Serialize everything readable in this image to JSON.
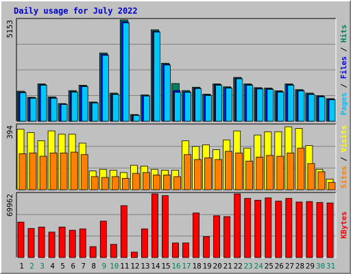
{
  "chart_data": {
    "type": "bar",
    "title": "Daily usage for July 2022",
    "categories": [
      "1",
      "2",
      "3",
      "4",
      "5",
      "6",
      "7",
      "8",
      "9",
      "10",
      "11",
      "12",
      "13",
      "14",
      "15",
      "16",
      "17",
      "18",
      "19",
      "20",
      "21",
      "22",
      "23",
      "24",
      "25",
      "26",
      "27",
      "28",
      "29",
      "30",
      "31"
    ],
    "weekend_days": [
      "2",
      "3",
      "9",
      "10",
      "16",
      "17",
      "23",
      "24",
      "30",
      "31"
    ],
    "grid": true,
    "panels": [
      {
        "name": "hits-files-pages",
        "ymax_label": "5153",
        "ylim": [
          0,
          5153
        ],
        "right_label_parts": [
          {
            "text": "Pages",
            "color": "#00c0ff"
          },
          {
            "text": " / ",
            "color": "#000000"
          },
          {
            "text": "Files",
            "color": "#0000ff"
          },
          {
            "text": " / ",
            "color": "#000000"
          },
          {
            "text": "Hits",
            "color": "#00805c"
          }
        ],
        "series": [
          {
            "name": "Hits",
            "color": "#008060",
            "values": [
              1530,
              1220,
              1900,
              1240,
              900,
              1560,
              1830,
              980,
              3470,
              1430,
              5153,
              340,
              1340,
              4650,
              2950,
              1920,
              1560,
              1730,
              1380,
              1900,
              1750,
              2230,
              1900,
              1710,
              1690,
              1550,
              1900,
              1610,
              1430,
              1300,
              1150
            ]
          },
          {
            "name": "Files",
            "color": "#0000ff",
            "values": [
              1480,
              1190,
              1860,
              1200,
              870,
              1510,
              1790,
              950,
              3400,
              1390,
              5060,
              320,
              1300,
              4570,
              2900,
              1560,
              1500,
              1690,
              1340,
              1860,
              1710,
              2190,
              1860,
              1670,
              1650,
              1510,
              1860,
              1570,
              1390,
              1270,
              1120
            ]
          },
          {
            "name": "Pages",
            "color": "#00c8ff",
            "values": [
              1450,
              1170,
              1830,
              1170,
              850,
              1480,
              1760,
              930,
              3350,
              1360,
              5000,
              300,
              1280,
              4530,
              2860,
              1470,
              1470,
              1660,
              1310,
              1830,
              1680,
              2160,
              1830,
              1640,
              1620,
              1480,
              1830,
              1540,
              1360,
              1240,
              1090
            ]
          }
        ]
      },
      {
        "name": "visits-sites",
        "ymax_label": "394",
        "ylim": [
          0,
          394
        ],
        "right_label_parts": [
          {
            "text": "Sites",
            "color": "#ff8000"
          },
          {
            "text": " / ",
            "color": "#000000"
          },
          {
            "text": "Visits",
            "color": "#ffff00"
          }
        ],
        "series": [
          {
            "name": "Visits",
            "color": "#ffff00",
            "values": [
              370,
              350,
              300,
              360,
              340,
              340,
              285,
              115,
              125,
              120,
              105,
              150,
              145,
              125,
              120,
              120,
              300,
              265,
              275,
              245,
              305,
              360,
              255,
              335,
              355,
              355,
              385,
              375,
              270,
              125,
              65
            ]
          },
          {
            "name": "Sites",
            "color": "#ff8000",
            "values": [
              220,
              225,
              205,
              225,
              225,
              230,
              215,
              80,
              75,
              80,
              70,
              100,
              105,
              90,
              90,
              80,
              215,
              185,
              195,
              185,
              235,
              225,
              175,
              200,
              210,
              205,
              225,
              255,
              160,
              110,
              45
            ]
          }
        ]
      },
      {
        "name": "kbytes",
        "ymax_label": "69962",
        "ylim": [
          0,
          69962
        ],
        "right_label_parts": [
          {
            "text": "KBytes",
            "color": "#ff0000"
          }
        ],
        "series": [
          {
            "name": "KBytes",
            "color": "#ff0000",
            "values": [
              39000,
              32000,
              33500,
              28000,
              33500,
              30000,
              31500,
              12000,
              40000,
              14500,
              57000,
              6000,
              31500,
              69962,
              68000,
              16000,
              16000,
              49000,
              23000,
              46000,
              45000,
              69962,
              65000,
              63000,
              65500,
              62000,
              65000,
              61000,
              61500,
              60500,
              60000
            ]
          }
        ]
      }
    ]
  }
}
